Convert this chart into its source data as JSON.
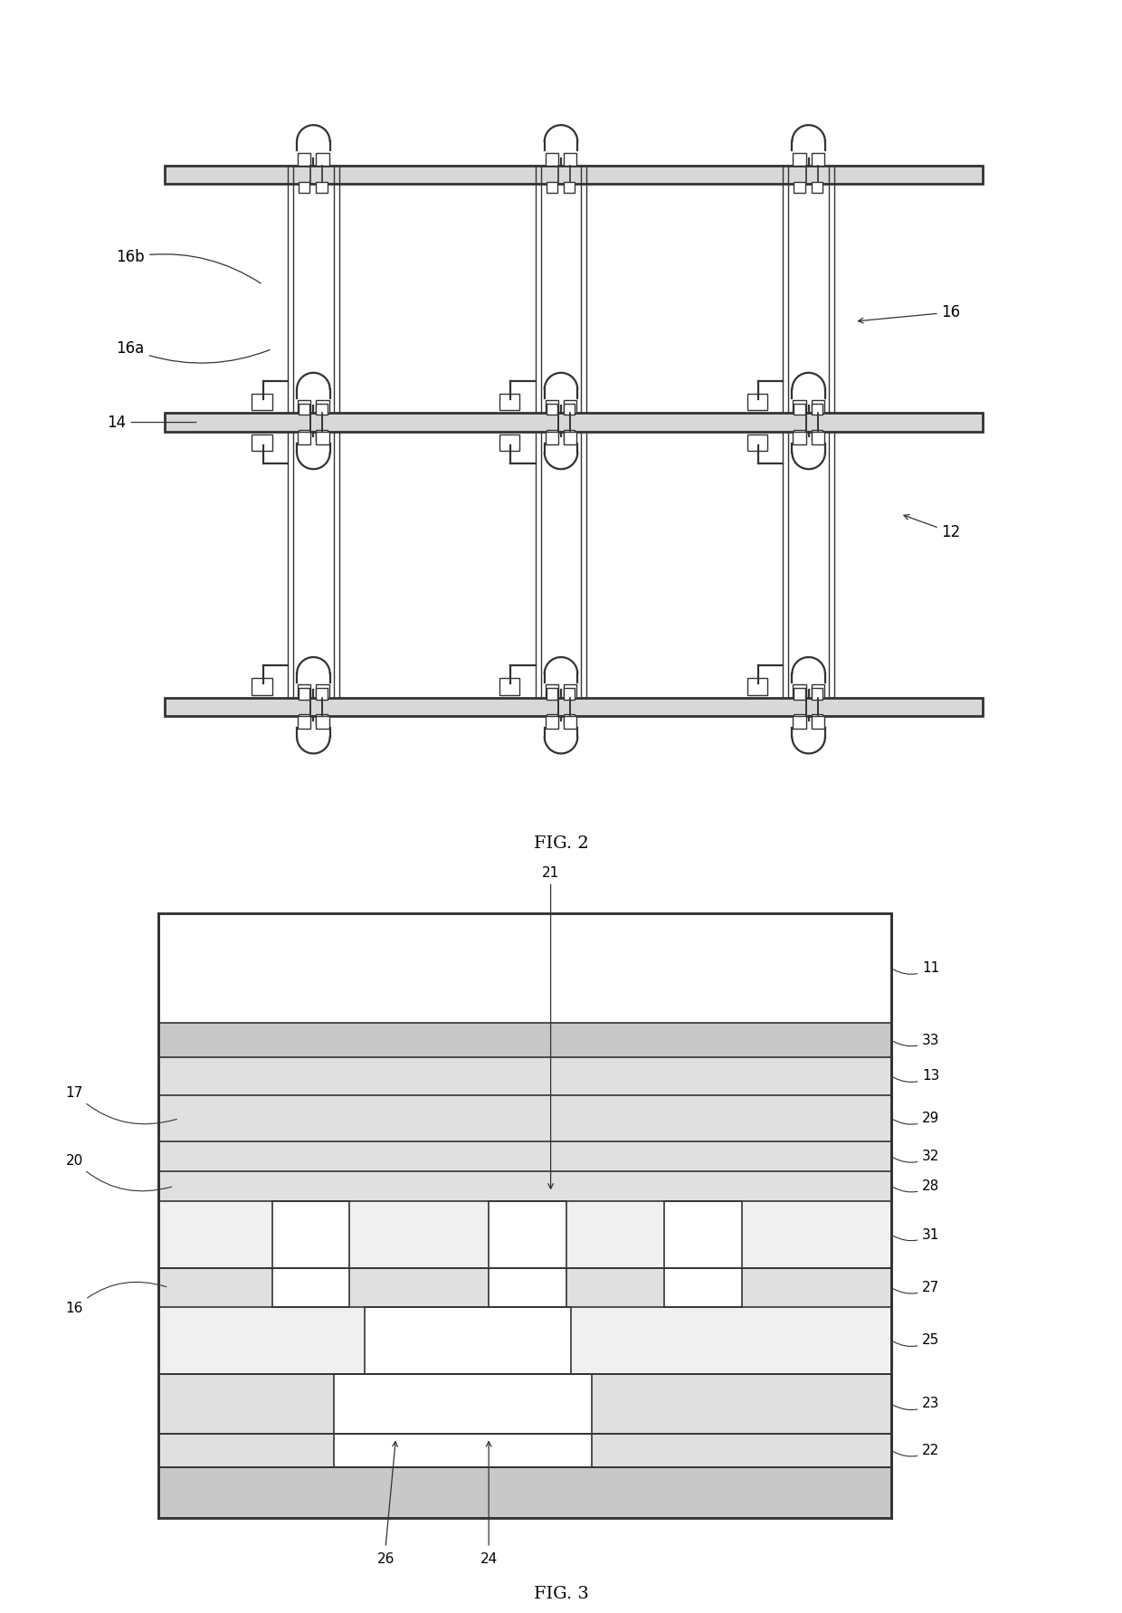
{
  "fig_width": 12.4,
  "fig_height": 17.82,
  "bg_color": "#ffffff",
  "lc": "#333333",
  "fig2_title": "FIG. 2",
  "fig3_title": "FIG. 3",
  "bar_color": "#d8d8d8",
  "layer_color_dark": "#c8c8c8",
  "layer_color_thin": "#e0e0e0"
}
